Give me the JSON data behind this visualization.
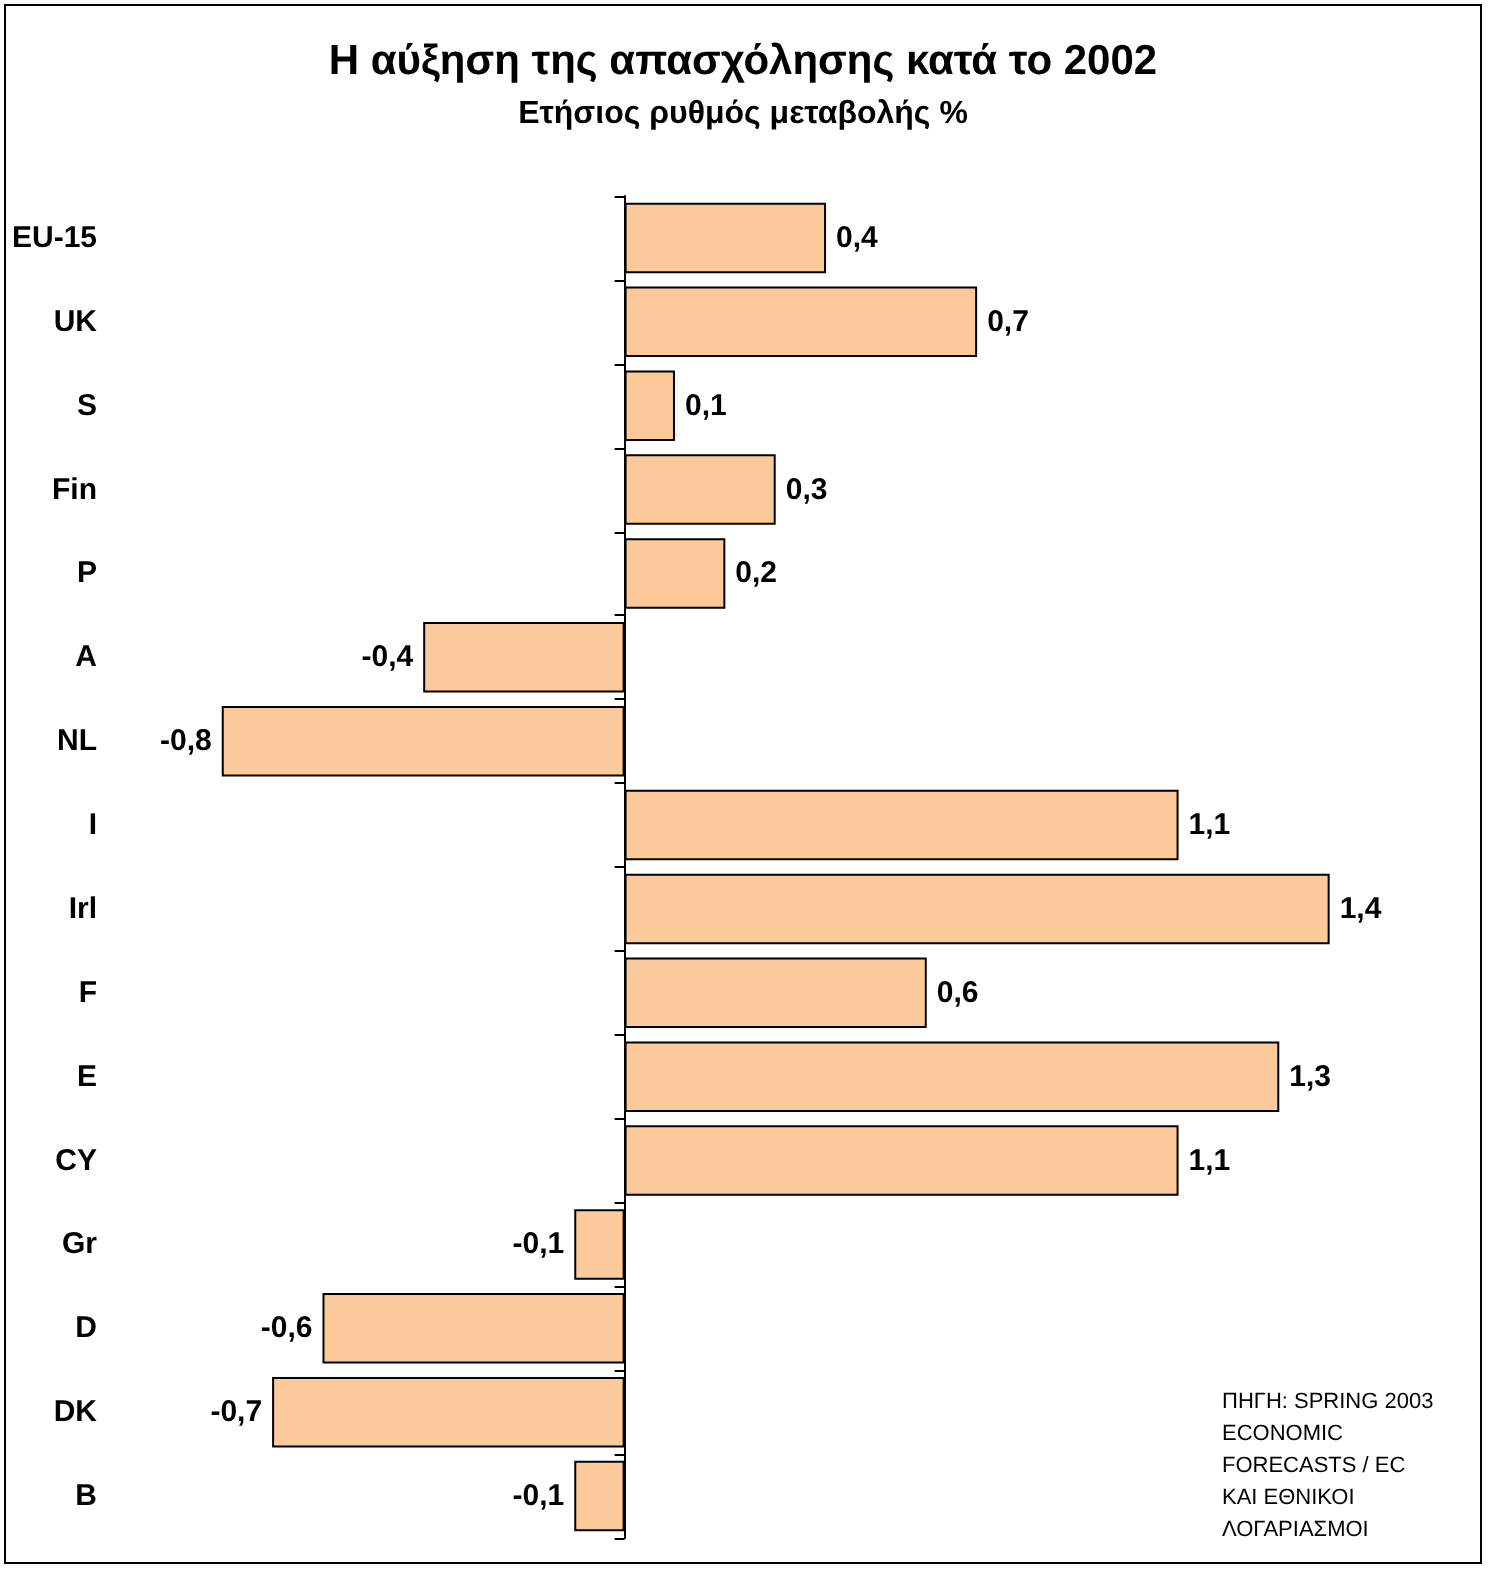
{
  "chart_data": {
    "type": "bar",
    "orientation": "horizontal",
    "title": "Η αύξηση της απασχόλησης κατά το 2002",
    "subtitle": "Ετήσιος ρυθμός μεταβολής %",
    "categories": [
      "EU-15",
      "UK",
      "S",
      "Fin",
      "P",
      "A",
      "NL",
      "I",
      "Irl",
      "F",
      "E",
      "CY",
      "Gr",
      "D",
      "DK",
      "B"
    ],
    "values": [
      0.4,
      0.7,
      0.1,
      0.3,
      0.2,
      -0.4,
      -0.8,
      1.1,
      1.4,
      0.6,
      1.3,
      1.1,
      -0.1,
      -0.6,
      -0.7,
      -0.1
    ],
    "value_labels": [
      "0,4",
      "0,7",
      "0,1",
      "0,3",
      "0,2",
      "-0,4",
      "-0,8",
      "1,1",
      "1,4",
      "0,6",
      "1,3",
      "1,1",
      "-0,1",
      "-0,6",
      "-0,7",
      "-0,1"
    ],
    "color": "#fcc99b",
    "annotations": [
      "ΠΗΓΗ: SPRING 2003 ECONOMIC FORECASTS / EC ΚΑΙ ΕΘΝΙΚΟΙ ΛΟΓΑΡΙΑΣΜΟΙ"
    ]
  }
}
